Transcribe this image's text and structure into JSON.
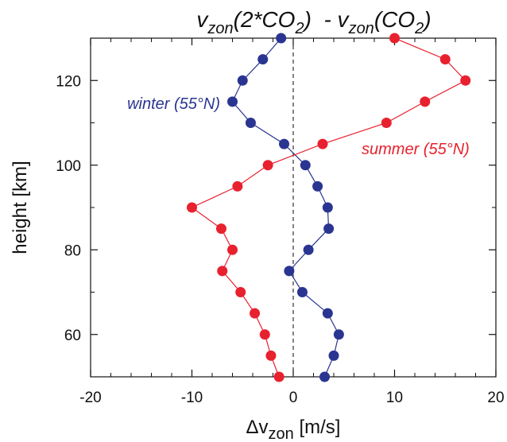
{
  "chart_data": {
    "type": "line",
    "title": {
      "part1_base": "v",
      "part1_sub": "zon",
      "part1_rest": "(2*CO",
      "part1_sub2": "2",
      "part1_close": ")",
      "minus": "  - v",
      "part2_sub": "zon",
      "part2_rest": "(CO",
      "part2_sub2": "2",
      "part2_close": ")"
    },
    "xlabel": {
      "prefix": "Δv",
      "sub": "zon",
      "suffix": " [m/s]"
    },
    "ylabel": "height [km]",
    "xlim": [
      -20,
      20
    ],
    "ylim": [
      50,
      130
    ],
    "xticks": [
      -20,
      -10,
      0,
      10,
      20
    ],
    "xtick_labels": [
      "-20",
      "-10",
      "0",
      "10",
      "20"
    ],
    "yticks": [
      60,
      80,
      100,
      120
    ],
    "ytick_labels": [
      "60",
      "80",
      "100",
      "120"
    ],
    "zero_line": {
      "x": 0,
      "style": "dashed"
    },
    "series": [
      {
        "name": "winter (55°N)",
        "color": "#2a3591",
        "points": [
          {
            "x": -1.2,
            "y": 130
          },
          {
            "x": -3.0,
            "y": 125
          },
          {
            "x": -5.0,
            "y": 120
          },
          {
            "x": -6.0,
            "y": 115
          },
          {
            "x": -4.2,
            "y": 110
          },
          {
            "x": -0.9,
            "y": 105
          },
          {
            "x": 1.2,
            "y": 100
          },
          {
            "x": 2.4,
            "y": 95
          },
          {
            "x": 3.4,
            "y": 90
          },
          {
            "x": 3.5,
            "y": 85
          },
          {
            "x": 1.5,
            "y": 80
          },
          {
            "x": -0.4,
            "y": 75
          },
          {
            "x": 0.9,
            "y": 70
          },
          {
            "x": 3.4,
            "y": 65
          },
          {
            "x": 4.5,
            "y": 60
          },
          {
            "x": 4.0,
            "y": 55
          },
          {
            "x": 3.1,
            "y": 50
          }
        ]
      },
      {
        "name": "summer (55°N)",
        "color": "#e8212f",
        "points": [
          {
            "x": 10.0,
            "y": 130
          },
          {
            "x": 15.0,
            "y": 125
          },
          {
            "x": 17.0,
            "y": 120
          },
          {
            "x": 13.0,
            "y": 115
          },
          {
            "x": 9.2,
            "y": 110
          },
          {
            "x": 2.9,
            "y": 105
          },
          {
            "x": -2.5,
            "y": 100
          },
          {
            "x": -5.5,
            "y": 95
          },
          {
            "x": -10.0,
            "y": 90
          },
          {
            "x": -7.1,
            "y": 85
          },
          {
            "x": -6.0,
            "y": 80
          },
          {
            "x": -7.0,
            "y": 75
          },
          {
            "x": -5.2,
            "y": 70
          },
          {
            "x": -3.8,
            "y": 65
          },
          {
            "x": -2.8,
            "y": 60
          },
          {
            "x": -2.2,
            "y": 55
          },
          {
            "x": -1.4,
            "y": 50
          }
        ]
      }
    ],
    "annotations": [
      {
        "text": "winter (55°N)",
        "series": 0,
        "position": "left of series near 115 km"
      },
      {
        "text": "summer (55°N)",
        "series": 1,
        "position": "right of series near 103 km"
      }
    ],
    "grid": false,
    "legend": "none (inline annotations)"
  }
}
